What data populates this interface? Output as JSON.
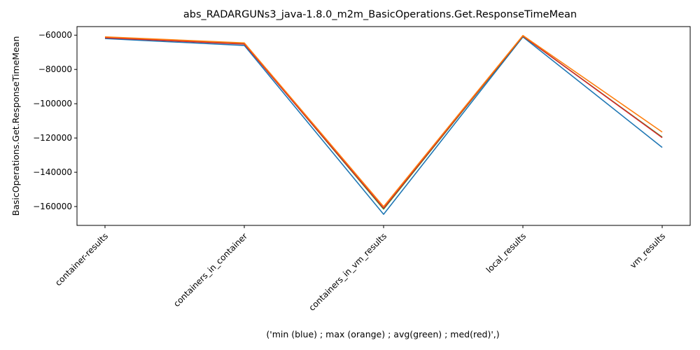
{
  "chart_data": {
    "type": "line",
    "title": "abs_RADARGUNs3_java-1.8.0_m2m_BasicOperations.Get.ResponseTimeMean",
    "xlabel": "('min (blue) ; max (orange) ; avg(green) ; med(red)',)",
    "ylabel": "BasicOperations.Get.ResponseTimeMean",
    "categories": [
      "container-results",
      "containers_in_container",
      "containers_in_vm_results",
      "local_results",
      "vm_results"
    ],
    "ylim": [
      -171000,
      -55000
    ],
    "yticks": [
      -60000,
      -80000,
      -100000,
      -120000,
      -140000,
      -160000
    ],
    "ytick_labels": [
      "−60000",
      "−80000",
      "−100000",
      "−120000",
      "−140000",
      "−160000"
    ],
    "grid": false,
    "series": [
      {
        "color": "#1f77b4",
        "values": [
          -62000,
          -66000,
          -164500,
          -61000,
          -125500
        ]
      },
      {
        "color": "#2ca02c",
        "values": [
          -61200,
          -65000,
          -161500,
          -60600,
          -119500
        ]
      },
      {
        "color": "#d62728",
        "values": [
          -61500,
          -65200,
          -161000,
          -60500,
          -119800
        ]
      },
      {
        "color": "#ff7f0e",
        "values": [
          -61000,
          -64500,
          -160000,
          -60200,
          -116500
        ]
      }
    ]
  }
}
